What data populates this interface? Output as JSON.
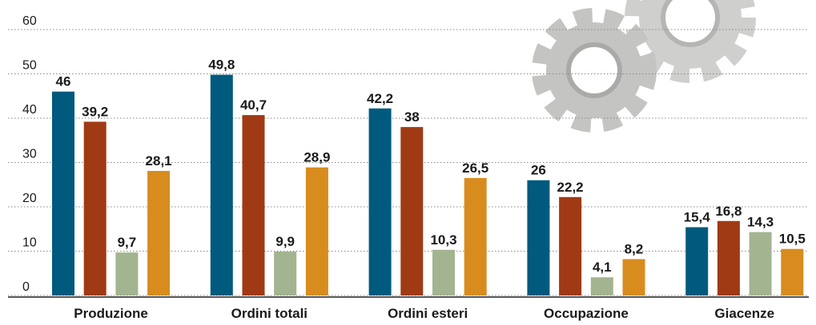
{
  "chart_data": {
    "type": "bar",
    "categories": [
      "Produzione",
      "Ordini totali",
      "Ordini esteri",
      "Occupazione",
      "Giacenze"
    ],
    "series": [
      {
        "color": "#005a7e",
        "values": [
          46,
          49.8,
          42.2,
          26,
          15.4
        ],
        "value_labels": [
          "46",
          "49,8",
          "42,2",
          "26",
          "15,4"
        ]
      },
      {
        "color": "#a03a14",
        "values": [
          39.2,
          40.7,
          38,
          22.2,
          16.8
        ],
        "value_labels": [
          "39,2",
          "40,7",
          "38",
          "22,2",
          "16,8"
        ]
      },
      {
        "color": "#a3b491",
        "values": [
          9.7,
          9.9,
          10.3,
          4.1,
          14.3
        ],
        "value_labels": [
          "9,7",
          "9,9",
          "10,3",
          "4,1",
          "14,3"
        ]
      },
      {
        "color": "#d98c1e",
        "values": [
          28.1,
          28.9,
          26.5,
          8.2,
          10.5
        ],
        "value_labels": [
          "28,1",
          "28,9",
          "26,5",
          "8,2",
          "10,5"
        ]
      }
    ],
    "ylim": [
      0,
      60
    ],
    "yticks": [
      0,
      10,
      20,
      30,
      40,
      50,
      60
    ],
    "grid": true
  }
}
